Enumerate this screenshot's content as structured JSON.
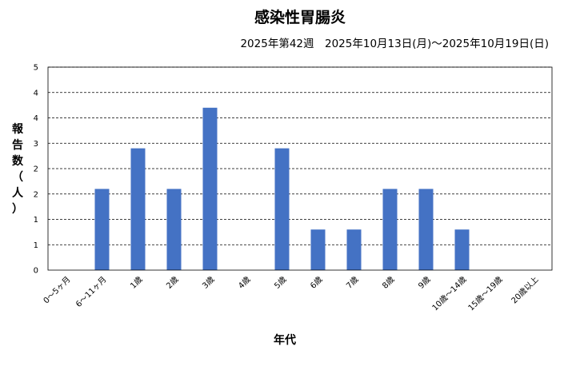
{
  "chart_data": {
    "type": "bar",
    "title": "感染性胃腸炎",
    "subtitle": "2025年第42週　2025年10月13日(月)～2025年10月19日(日)",
    "xlabel": "年代",
    "ylabel": "報告数（人）",
    "ylim": [
      0,
      5
    ],
    "yticks": [
      "0",
      "1",
      "1",
      "2",
      "2",
      "3",
      "4",
      "4",
      "5"
    ],
    "grid": true,
    "bar_color": "#4472C4",
    "categories": [
      "0～5ヶ月",
      "6～11ヶ月",
      "1歳",
      "2歳",
      "3歳",
      "4歳",
      "5歳",
      "6歳",
      "7歳",
      "8歳",
      "9歳",
      "10歳～14歳",
      "15歳～19歳",
      "20歳以上"
    ],
    "values": [
      0,
      2,
      3,
      2,
      4,
      0,
      3,
      1,
      1,
      2,
      2,
      1,
      0,
      0
    ]
  }
}
